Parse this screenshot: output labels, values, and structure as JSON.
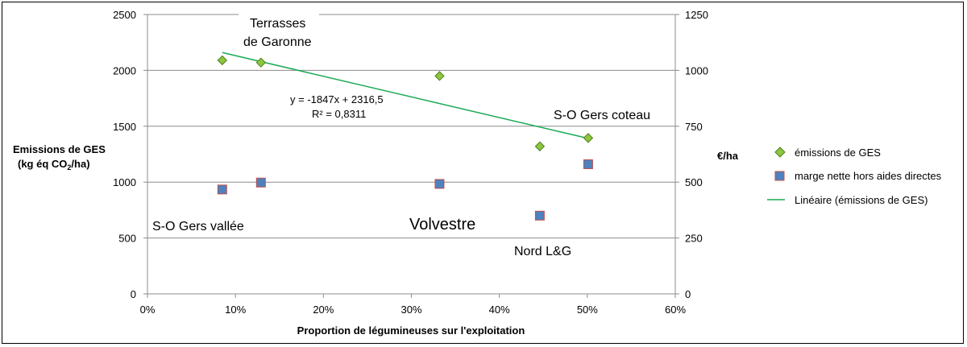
{
  "chart_data": {
    "type": "scatter",
    "xlabel": "Proportion de légumineuses sur l'exploitation",
    "ylabel_left_line1": "Emissions de GES",
    "ylabel_left_line2_prefix": "(kg éq CO",
    "ylabel_left_line2_sub": "2",
    "ylabel_left_line2_suffix": "/ha)",
    "ylabel_right": "€/ha",
    "xlim": [
      0,
      0.6
    ],
    "ylim_left": [
      0,
      2500
    ],
    "ylim_right": [
      0,
      1250
    ],
    "x_ticks": [
      0,
      0.1,
      0.2,
      0.3,
      0.4,
      0.5,
      0.6
    ],
    "x_tick_labels": [
      "0%",
      "10%",
      "20%",
      "30%",
      "40%",
      "50%",
      "60%"
    ],
    "y_left_ticks": [
      0,
      500,
      1000,
      1500,
      2000,
      2500
    ],
    "y_left_tick_labels": [
      "0",
      "500",
      "1000",
      "1500",
      "2000",
      "2500"
    ],
    "y_right_ticks": [
      0,
      250,
      500,
      750,
      1000,
      1250
    ],
    "y_right_tick_labels": [
      "0",
      "250",
      "500",
      "750",
      "1000",
      "1250"
    ],
    "grid": "horizontal",
    "legend_position": "right",
    "series": [
      {
        "name": "émissions de GES",
        "axis": "left",
        "marker": "diamond",
        "color": "#8dc63f",
        "edge": "#4f7f1f",
        "x": [
          0.085,
          0.129,
          0.332,
          0.446,
          0.501
        ],
        "y": [
          2090,
          2070,
          1950,
          1320,
          1395
        ]
      },
      {
        "name": "marge nette hors aides directes",
        "axis": "right",
        "marker": "square",
        "color": "#4f81bd",
        "edge": "#c0504d",
        "x": [
          0.085,
          0.129,
          0.332,
          0.446,
          0.501
        ],
        "y": [
          467,
          498,
          492,
          350,
          580
        ]
      },
      {
        "name": "Linéaire (émissions de GES)",
        "axis": "left",
        "type": "trendline",
        "color": "#1aaa55",
        "slope": -1847,
        "intercept": 2316.5,
        "x_range": [
          0.085,
          0.501
        ]
      }
    ],
    "annotations": {
      "equation": "y = -1847x + 2316,5",
      "r2": "R² = 0,8311",
      "regions": [
        {
          "key": "terrasses1",
          "text": "Terrasses"
        },
        {
          "key": "terrasses2",
          "text": "de Garonne"
        },
        {
          "key": "sogersc",
          "text": "S-O Gers coteau"
        },
        {
          "key": "sogersv",
          "text": "S-O Gers vallée"
        },
        {
          "key": "volvestre",
          "text": "Volvestre"
        },
        {
          "key": "nordlg",
          "text": "Nord L&G"
        }
      ]
    }
  }
}
